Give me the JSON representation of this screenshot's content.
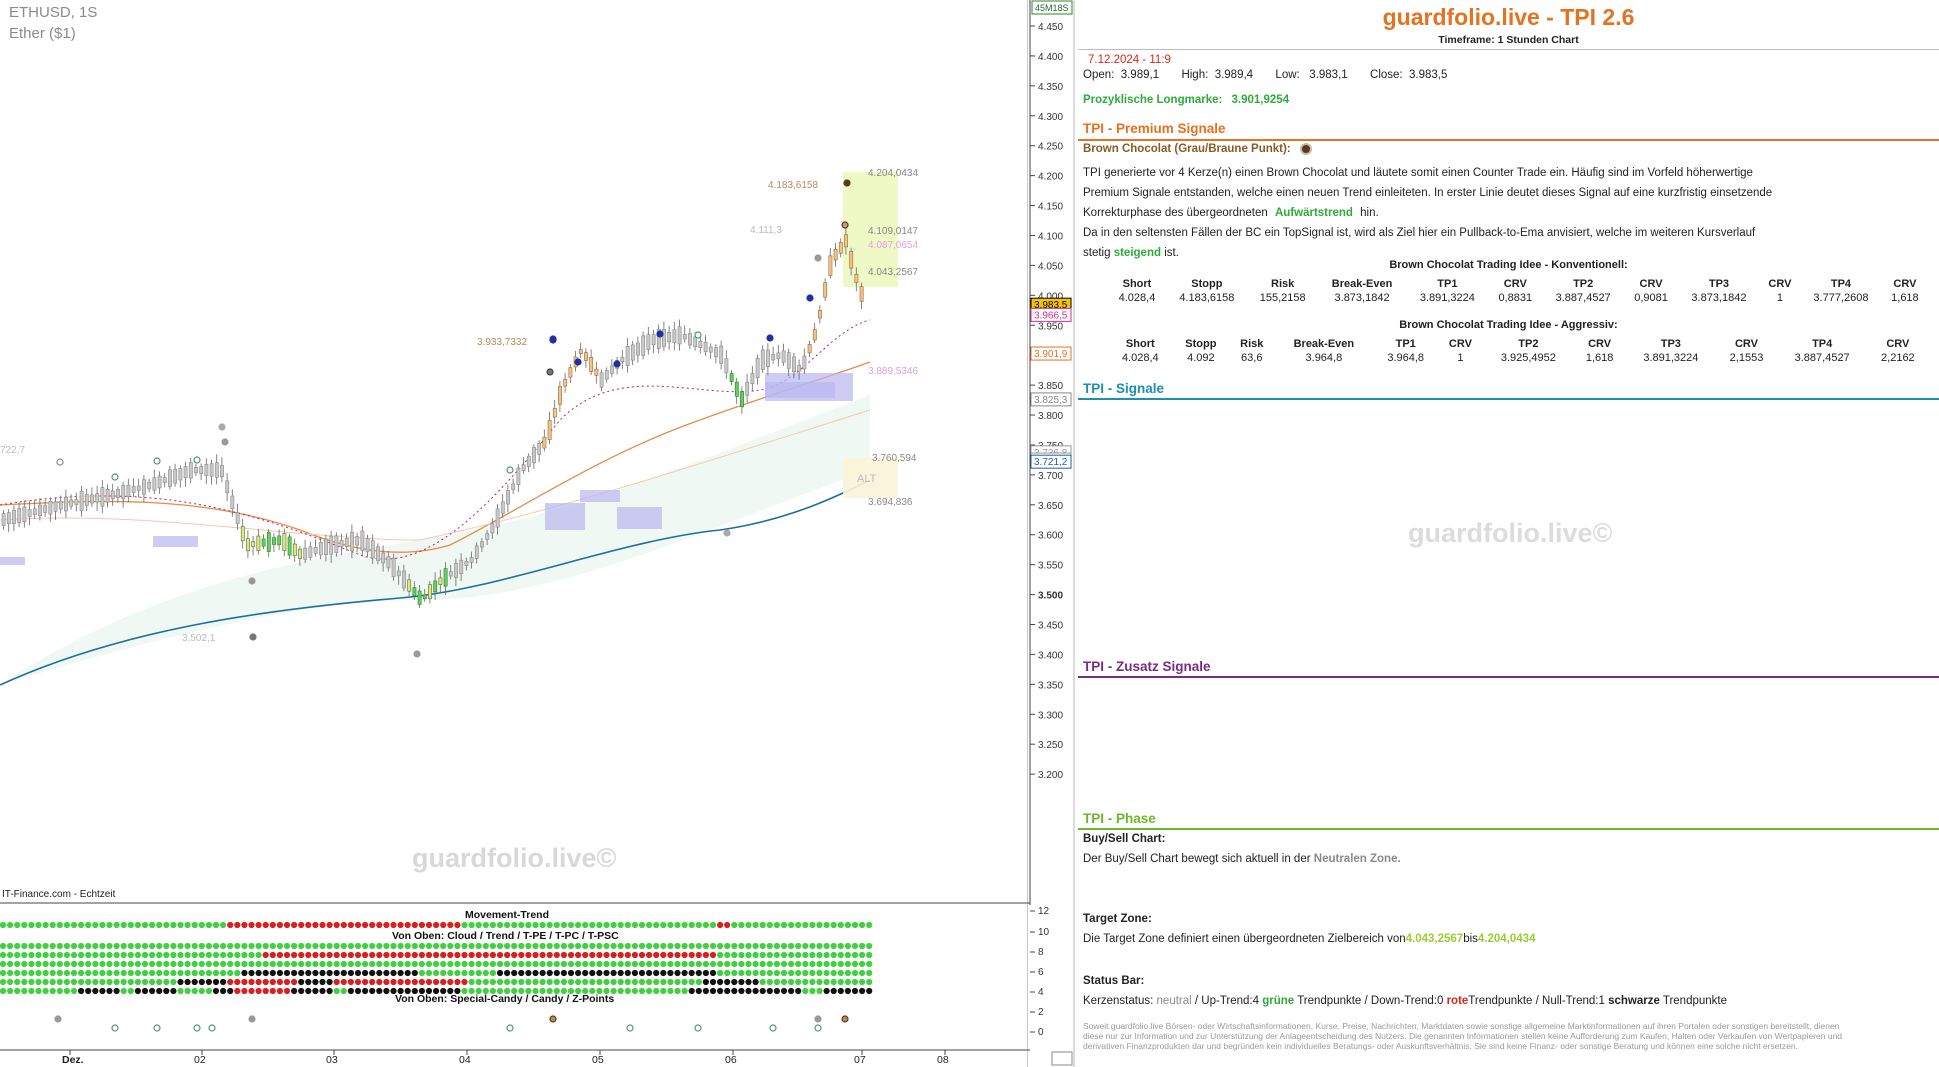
{
  "chart": {
    "symbol": "ETHUSD, 1S",
    "subtitle": "Ether ($1)",
    "footer": "IT-Finance.com - Echtzeit",
    "watermark": "guardfolio.live©",
    "timer": "45M18S",
    "y_axis_labels": [
      "4.450",
      "4.400",
      "4.350",
      "4.300",
      "4.250",
      "4.200",
      "4.150",
      "4.100",
      "4.050",
      "4.000",
      "3.950",
      "3.900",
      "3.850",
      "3.800",
      "3.750",
      "3.700",
      "3.650",
      "3.600",
      "3.550",
      "3.500",
      "3.450",
      "3.400",
      "3.350",
      "3.300",
      "3.250",
      "3.200"
    ],
    "x_axis_labels": [
      "Dez.",
      "02",
      "03",
      "04",
      "05",
      "06",
      "07",
      "08"
    ],
    "price_tags": {
      "current": "3.983,5",
      "pink": "3.966,5",
      "long_mark": "3.901,9",
      "gray1": "3.825,3",
      "gray2": "3.736,8",
      "gray3": "3.724,8",
      "blue": "3.721,2"
    },
    "annotations": {
      "a1": "4.204,0434",
      "a2": "4.183,6158",
      "a3": "4.111,3",
      "a4": "4.109,0147",
      "a5": "4.087,0654",
      "a6": "4.043,2567",
      "a7": "3.933,7332",
      "a8": "3.889,5346",
      "a9": "3.760,594",
      "a10": "3.694,836",
      "a11": "3.502,1",
      "a12": "722,7",
      "alt": "ALT"
    },
    "indicator": {
      "title1": "Movement-Trend",
      "title2": "Von Oben: Cloud / Trend / T-PE / T-PC / T-PSC",
      "title3": "Von Oben: Special-Candy / Candy / Z-Points",
      "axis": [
        "12",
        "10",
        "8",
        "6",
        "4",
        "2",
        "0"
      ]
    }
  },
  "panel": {
    "brand_title": "guardfolio.live - TPI 2.6",
    "timeframe": "Timeframe: 1 Stunden Chart",
    "date": "7.12.2024 - 11:9",
    "ohlc": "Open:  3.989,1       High:  3.989,4       Low:   3.983,1       Close:  3.983,5",
    "longmark_label": "Prozyklische Longmarke:",
    "longmark_value": "3.901,9254",
    "premium_title": "TPI - Premium Signale",
    "bc_title": "Brown Chocolat (Grau/Braune Punkt):",
    "bc_line1": "TPI generierte vor 4  Kerze(n) einen Brown Chocolat und läutete somit einen Counter Trade ein. Häufig sind im Vorfeld höherwertige",
    "bc_line2": "Premium Signale entstanden, welche einen neuen Trend einleiteten. In erster Linie deutet dieses Signal auf eine kurzfristig einsetzende",
    "bc_line3_pre": "Korrekturphase des übergeordneten",
    "bc_line3_trend": "Aufwärtstrend",
    "bc_line3_post": "hin.",
    "bc_line4": "Da in den seltensten Fällen der BC ein TopSignal ist, wird als Ziel hier ein Pullback-to-Ema anvisiert, welche im weiteren Kursverlauf",
    "bc_line5_pre": "stetig",
    "bc_line5_word": "steigend",
    "bc_line5_post": "ist.",
    "table1_title": "Brown Chocolat Trading Idee - Konventionell:",
    "table2_title": "Brown Chocolat Trading Idee - Aggressiv:",
    "table_headers": [
      "Short",
      "Stopp",
      "Risk",
      "Break-Even",
      "TP1",
      "CRV",
      "TP2",
      "CRV",
      "TP3",
      "CRV",
      "TP4",
      "CRV"
    ],
    "table1_values": [
      "4.028,4",
      "4.183,6158",
      "155,2158",
      "3.873,1842",
      "3.891,3224",
      "0,8831",
      "3.887,4527",
      "0,9081",
      "3.873,1842",
      "1",
      "3.777,2608",
      "1,618"
    ],
    "table2_values": [
      "4.028,4",
      "4.092",
      "63,6",
      "3.964,8",
      "3.964,8",
      "1",
      "3.925,4952",
      "1,618",
      "3.891,3224",
      "2,1553",
      "3.887,4527",
      "2,2162"
    ],
    "signale_title": "TPI - Signale",
    "zusatz_title": "TPI - Zusatz Signale",
    "phase_title": "TPI - Phase",
    "buysell_title": "Buy/Sell Chart:",
    "buysell_pre": "Der Buy/Sell Chart bewegt sich aktuell in der",
    "buysell_zone": "Neutralen Zone.",
    "target_title": "Target Zone:",
    "target_pre": "Die Target Zone definiert einen übergeordneten Zielbereich von",
    "target_from": "4.043,2567",
    "target_mid": "bis",
    "target_to": "4.204,0434",
    "status_title": "Status Bar:",
    "status_pre": "Kerzenstatus:",
    "status_neutral": "neutral",
    "status_up": " / Up-Trend:4",
    "status_green": "grüne",
    "status_trend1": "Trendpunkte  / Down-Trend:0",
    "status_red": "rote",
    "status_trend2": "Trendpunkte / Null-Trend:1",
    "status_black": "schwarze",
    "status_trend3": "Trendpunkte",
    "watermark": "guardfolio.live©",
    "disclaimer": "Soweit guardfolio.live Börsen- oder Wirtschaftsinformationen, Kurse, Preise, Nachrichten, Marktdaten sowie sonstige allgemeine Marktinformationen auf ihren Portalen oder sonstigen bereitstellt, dienen diese nur zur Information und zur Unterstützung der Anlageentscheidung des Nutzers. Die genannten Informationen stellen keine Aufforderung zum Kaufen, Halten oder Verkaufen von Wertpapieren und derivativen Finanzprodukten dar und begründen kein individuelles Beratungs- oder Auskunftsverhältnis. Sie sind keine Finanz- oder sonstige Beratung und können eine solche nicht ersetzen.",
    "colors": {
      "brand": "#e57220",
      "premium": "#e57220",
      "signale": "#1d8fb0",
      "zusatz": "#7b2a86",
      "phase": "#6cb82a",
      "green": "#2faa3a"
    }
  }
}
